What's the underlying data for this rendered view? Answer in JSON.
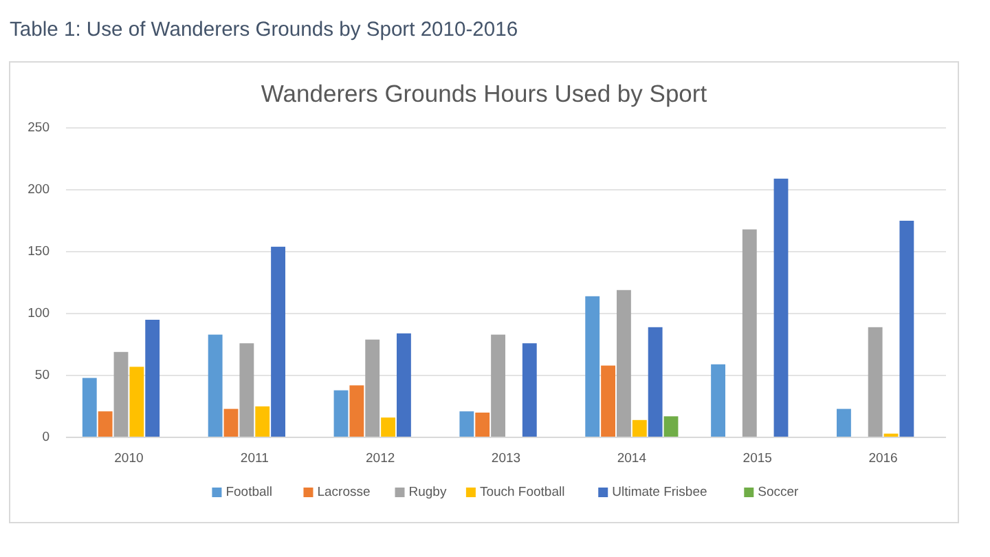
{
  "chart_data": {
    "type": "bar",
    "title": "Wanderers Grounds Hours Used by Sport",
    "annotations": [
      "Table 1: Use of Wanderers Grounds by Sport 2010-2016"
    ],
    "categories": [
      "2010",
      "2011",
      "2012",
      "2013",
      "2014",
      "2015",
      "2016"
    ],
    "series": [
      {
        "name": "Football",
        "color": "#5b9bd5",
        "values": [
          48,
          83,
          38,
          21,
          114,
          59,
          23
        ]
      },
      {
        "name": "Lacrosse",
        "color": "#ed7d31",
        "values": [
          21,
          23,
          42,
          20,
          58,
          null,
          null
        ]
      },
      {
        "name": "Rugby",
        "color": "#a5a5a5",
        "values": [
          69,
          76,
          79,
          83,
          119,
          168,
          89
        ]
      },
      {
        "name": "Touch Football",
        "color": "#ffc000",
        "values": [
          57,
          25,
          16,
          null,
          14,
          null,
          3
        ]
      },
      {
        "name": "Ultimate Frisbee",
        "color": "#4472c4",
        "values": [
          95,
          154,
          84,
          76,
          89,
          209,
          175
        ]
      },
      {
        "name": "Soccer",
        "color": "#70ad47",
        "values": [
          null,
          null,
          null,
          null,
          17,
          null,
          null
        ]
      }
    ],
    "ylim": [
      0,
      250
    ],
    "yticks": [
      0,
      50,
      100,
      150,
      200,
      250
    ],
    "grid": "y",
    "legend": "bottom"
  }
}
